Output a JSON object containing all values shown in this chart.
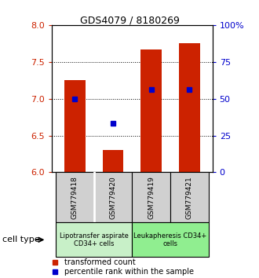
{
  "title": "GDS4079 / 8180269",
  "samples": [
    "GSM779418",
    "GSM779420",
    "GSM779419",
    "GSM779421"
  ],
  "bar_values": [
    7.25,
    6.3,
    7.67,
    7.75
  ],
  "bar_bottom": 6.0,
  "blue_dot_values": [
    7.0,
    6.67,
    7.12,
    7.12
  ],
  "ylim_left": [
    6.0,
    8.0
  ],
  "ylim_right": [
    0,
    100
  ],
  "yticks_left": [
    6.0,
    6.5,
    7.0,
    7.5,
    8.0
  ],
  "yticks_right": [
    0,
    25,
    50,
    75,
    100
  ],
  "ytick_labels_right": [
    "0",
    "25",
    "50",
    "75",
    "100%"
  ],
  "grid_lines": [
    6.5,
    7.0,
    7.5
  ],
  "bar_color": "#cc2200",
  "dot_color": "#0000cc",
  "bar_width": 0.55,
  "cell_type_groups": [
    {
      "label": "Lipotransfer aspirate\nCD34+ cells",
      "indices": [
        0,
        1
      ],
      "color": "#c8f0c8"
    },
    {
      "label": "Leukapheresis CD34+\ncells",
      "indices": [
        2,
        3
      ],
      "color": "#90ee90"
    }
  ],
  "sample_box_color": "#d0d0d0",
  "legend_labels": [
    "transformed count",
    "percentile rank within the sample"
  ],
  "cell_type_label": "cell type",
  "title_fontsize": 9,
  "tick_fontsize": 8,
  "label_fontsize": 6.5,
  "legend_fontsize": 7
}
